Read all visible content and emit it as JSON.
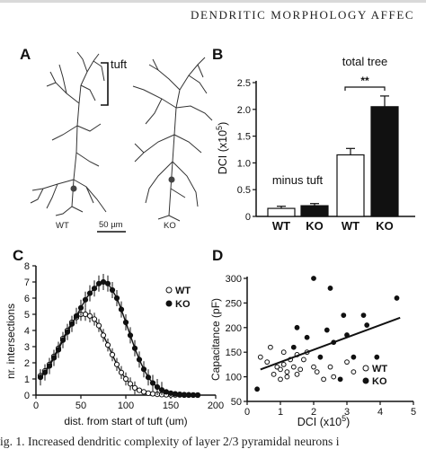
{
  "header": {
    "running_title": "DENDRITIC MORPHOLOGY AFFEC"
  },
  "caption": "ig. 1. Increased dendritic complexity of layer 2/3 pyramidal neurons i",
  "panel_a": {
    "letter": "A",
    "tuft_label": "tuft",
    "wt_label": "WT",
    "ko_label": "KO",
    "scale_label": "50 µm",
    "neuron_color": "#333333"
  },
  "chart_data": [
    {
      "panel": "B",
      "type": "bar",
      "ylabel": "DCI (x10",
      "ylabel_exp": "5",
      "ylabel_close": ")",
      "ylim": [
        0,
        2.5
      ],
      "yticks": [
        0,
        0.5,
        1.0,
        1.5,
        2.0,
        2.5
      ],
      "ytick_labels": [
        "0",
        "0.5",
        "1.0",
        "1.5",
        "2.0",
        "2.5"
      ],
      "categories": [
        "WT",
        "KO",
        "WT",
        "KO"
      ],
      "values": [
        0.15,
        0.2,
        1.15,
        2.05
      ],
      "errors": [
        0.04,
        0.04,
        0.12,
        0.2
      ],
      "fills": [
        "#ffffff",
        "#111111",
        "#ffffff",
        "#111111"
      ],
      "group_labels": [
        "minus tuft",
        "total tree"
      ],
      "significance": "**"
    },
    {
      "panel": "C",
      "type": "line",
      "xlabel": "dist. from start of tuft (um)",
      "ylabel": "nr. intersections",
      "xlim": [
        0,
        200
      ],
      "ylim": [
        0,
        8
      ],
      "xticks": [
        0,
        50,
        100,
        150,
        200
      ],
      "yticks": [
        0,
        1,
        2,
        3,
        4,
        5,
        6,
        7,
        8
      ],
      "legend": [
        "WT",
        "KO"
      ],
      "x": [
        5,
        10,
        15,
        20,
        25,
        30,
        35,
        40,
        45,
        50,
        55,
        60,
        65,
        70,
        75,
        80,
        85,
        90,
        95,
        100,
        105,
        110,
        115,
        120,
        125,
        130,
        135,
        140,
        145,
        150,
        155,
        160,
        165,
        170,
        175,
        180
      ],
      "series": [
        {
          "name": "WT",
          "marker": "open",
          "values": [
            1.2,
            1.5,
            1.9,
            2.4,
            2.9,
            3.5,
            4.0,
            4.5,
            4.8,
            5.0,
            5.0,
            4.9,
            4.7,
            4.3,
            3.7,
            3.1,
            2.5,
            1.9,
            1.4,
            1.0,
            0.7,
            0.45,
            0.3,
            0.2,
            0.12,
            0.08,
            0.05,
            0.03,
            0.02,
            0.02,
            0.01,
            0.01,
            0.0,
            0.0,
            0.0,
            0.0
          ],
          "error": 0.4
        },
        {
          "name": "KO",
          "marker": "filled",
          "values": [
            1.1,
            1.4,
            1.8,
            2.3,
            2.8,
            3.4,
            3.9,
            4.4,
            4.9,
            5.4,
            5.9,
            6.3,
            6.6,
            6.9,
            7.0,
            6.9,
            6.5,
            6.0,
            5.3,
            4.5,
            3.7,
            2.9,
            2.2,
            1.6,
            1.1,
            0.75,
            0.5,
            0.32,
            0.2,
            0.12,
            0.08,
            0.05,
            0.03,
            0.02,
            0.01,
            0.0
          ],
          "error": 0.5
        }
      ]
    },
    {
      "panel": "D",
      "type": "scatter",
      "xlabel": "DCI (x10",
      "xlabel_exp": "5",
      "xlabel_close": ")",
      "ylabel": "Capacitance (pF)",
      "xlim": [
        0,
        5
      ],
      "ylim": [
        50,
        300
      ],
      "xticks": [
        0,
        1,
        2,
        3,
        4,
        5
      ],
      "yticks": [
        50,
        100,
        150,
        200,
        250,
        300
      ],
      "legend": [
        "WT",
        "KO"
      ],
      "series": [
        {
          "name": "WT",
          "marker": "open",
          "points": [
            [
              0.4,
              140
            ],
            [
              0.6,
              130
            ],
            [
              0.8,
              105
            ],
            [
              0.9,
              120
            ],
            [
              1.0,
              115
            ],
            [
              1.0,
              95
            ],
            [
              1.1,
              125
            ],
            [
              1.2,
              110
            ],
            [
              1.2,
              100
            ],
            [
              1.3,
              135
            ],
            [
              1.4,
              120
            ],
            [
              1.5,
              105
            ],
            [
              1.5,
              145
            ],
            [
              1.6,
              115
            ],
            [
              1.7,
              135
            ],
            [
              1.8,
              150
            ],
            [
              2.0,
              120
            ],
            [
              2.1,
              110
            ],
            [
              2.3,
              95
            ],
            [
              2.5,
              120
            ],
            [
              2.6,
              100
            ],
            [
              3.0,
              130
            ],
            [
              3.2,
              110
            ],
            [
              0.7,
              160
            ],
            [
              1.1,
              150
            ]
          ]
        },
        {
          "name": "KO",
          "marker": "filled",
          "points": [
            [
              0.3,
              75
            ],
            [
              1.4,
              160
            ],
            [
              1.8,
              180
            ],
            [
              2.0,
              300
            ],
            [
              2.2,
              140
            ],
            [
              2.4,
              195
            ],
            [
              2.5,
              280
            ],
            [
              2.6,
              170
            ],
            [
              2.8,
              95
            ],
            [
              3.0,
              185
            ],
            [
              3.2,
              140
            ],
            [
              3.5,
              225
            ],
            [
              3.6,
              205
            ],
            [
              3.9,
              140
            ],
            [
              4.5,
              260
            ],
            [
              1.5,
              200
            ],
            [
              2.9,
              225
            ]
          ]
        }
      ],
      "trend": {
        "x": [
          0.4,
          4.6
        ],
        "y": [
          115,
          220
        ]
      }
    }
  ]
}
